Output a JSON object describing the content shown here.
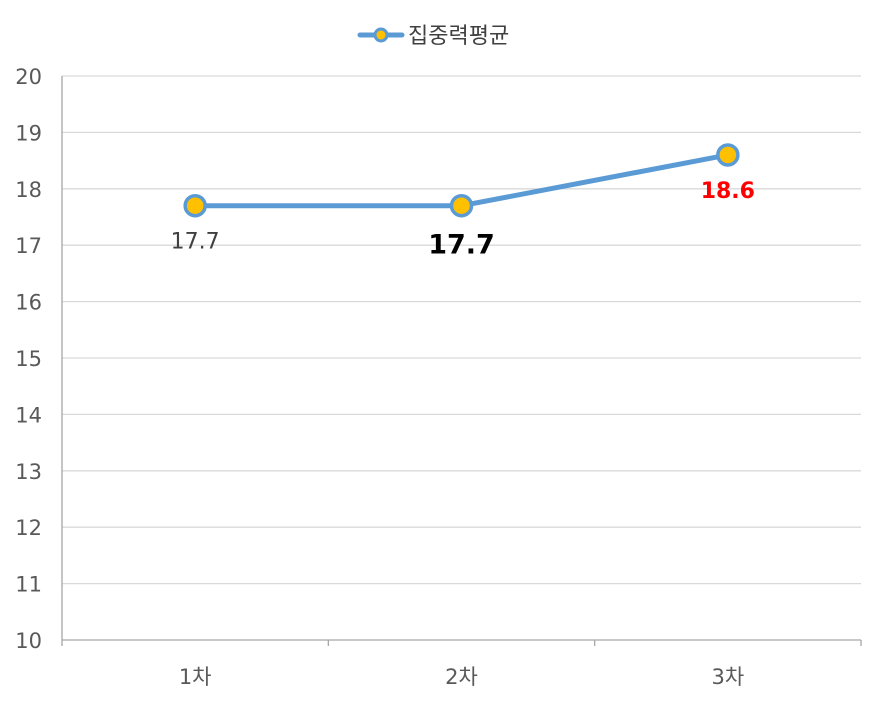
{
  "chart_data": {
    "type": "line",
    "categories": [
      "1차",
      "2차",
      "3차"
    ],
    "series": [
      {
        "name": "집중력평균",
        "values": [
          17.7,
          17.7,
          18.6
        ],
        "data_labels": [
          "17.7",
          "17.7",
          "18.6"
        ]
      }
    ],
    "ylim": [
      10,
      20
    ],
    "y_ticks": [
      "10",
      "11",
      "12",
      "13",
      "14",
      "15",
      "16",
      "17",
      "18",
      "19",
      "20"
    ],
    "grid": true,
    "legend": "top",
    "colors": {
      "line": "#5B9BD5",
      "marker_fill": "#FFC000",
      "grid": "#D9D9D9",
      "axis": "#A6A6A6",
      "label_default": "#404040",
      "label_emphasis": "#000000",
      "label_highlight": "#FF0000"
    }
  }
}
